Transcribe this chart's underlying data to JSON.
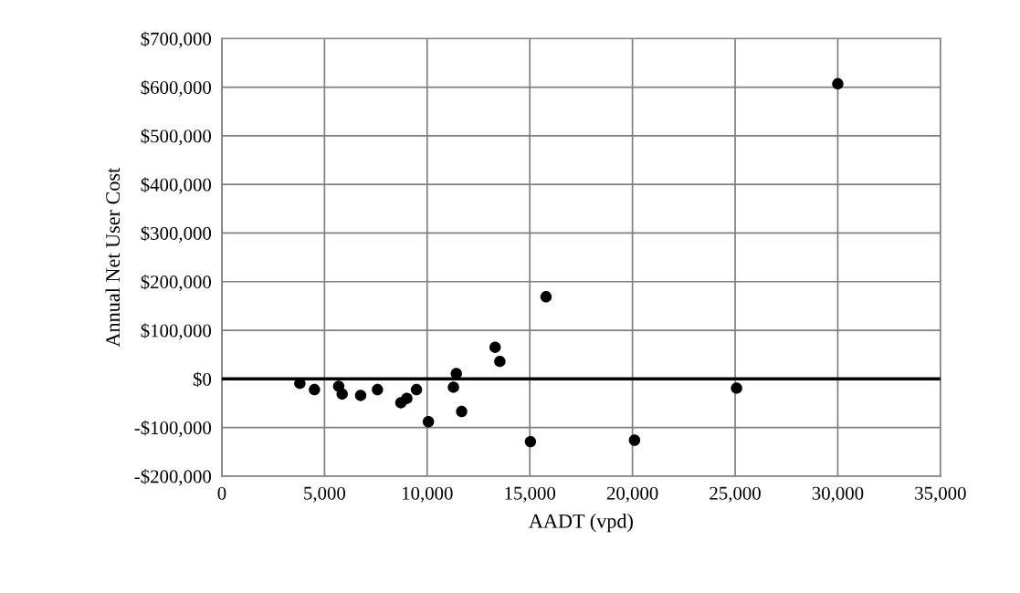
{
  "chart_data": {
    "type": "scatter",
    "xlabel": "AADT (vpd)",
    "ylabel": "Annual Net User Cost",
    "x": [
      3800,
      4510,
      5690,
      5860,
      6760,
      7580,
      8720,
      9010,
      9480,
      10060,
      11280,
      11420,
      11680,
      13310,
      13540,
      15030,
      15790,
      20100,
      25070,
      30000
    ],
    "values": [
      -9000,
      -22000,
      -15000,
      -31000,
      -34000,
      -22000,
      -49000,
      -40000,
      -22000,
      -88000,
      -17000,
      11000,
      -67000,
      65000,
      36000,
      -129000,
      169000,
      -126000,
      -19000,
      607000
    ],
    "color": "#000000",
    "marker": "circle",
    "grid": true,
    "xlim": [
      0,
      35000
    ],
    "xticks": [
      {
        "value": 0,
        "label": "0"
      },
      {
        "value": 5000,
        "label": "5,000"
      },
      {
        "value": 10000,
        "label": "10,000"
      },
      {
        "value": 15000,
        "label": "15,000"
      },
      {
        "value": 20000,
        "label": "20,000"
      },
      {
        "value": 25000,
        "label": "25,000"
      },
      {
        "value": 30000,
        "label": "30,000"
      },
      {
        "value": 35000,
        "label": "35,000"
      }
    ],
    "ylim": [
      -200000,
      700000
    ],
    "yticks": [
      {
        "value": -200000,
        "label": "-$200,000"
      },
      {
        "value": -100000,
        "label": "-$100,000"
      },
      {
        "value": 0,
        "label": "$0"
      },
      {
        "value": 100000,
        "label": "$100,000"
      },
      {
        "value": 200000,
        "label": "$200,000"
      },
      {
        "value": 300000,
        "label": "$300,000"
      },
      {
        "value": 400000,
        "label": "$400,000"
      },
      {
        "value": 500000,
        "label": "$500,000"
      },
      {
        "value": 600000,
        "label": "$600,000"
      },
      {
        "value": 700000,
        "label": "$700,000"
      }
    ],
    "ref_lines": [
      {
        "axis": "y",
        "value": 0,
        "color": "#000000",
        "line_style": "solid"
      }
    ]
  }
}
